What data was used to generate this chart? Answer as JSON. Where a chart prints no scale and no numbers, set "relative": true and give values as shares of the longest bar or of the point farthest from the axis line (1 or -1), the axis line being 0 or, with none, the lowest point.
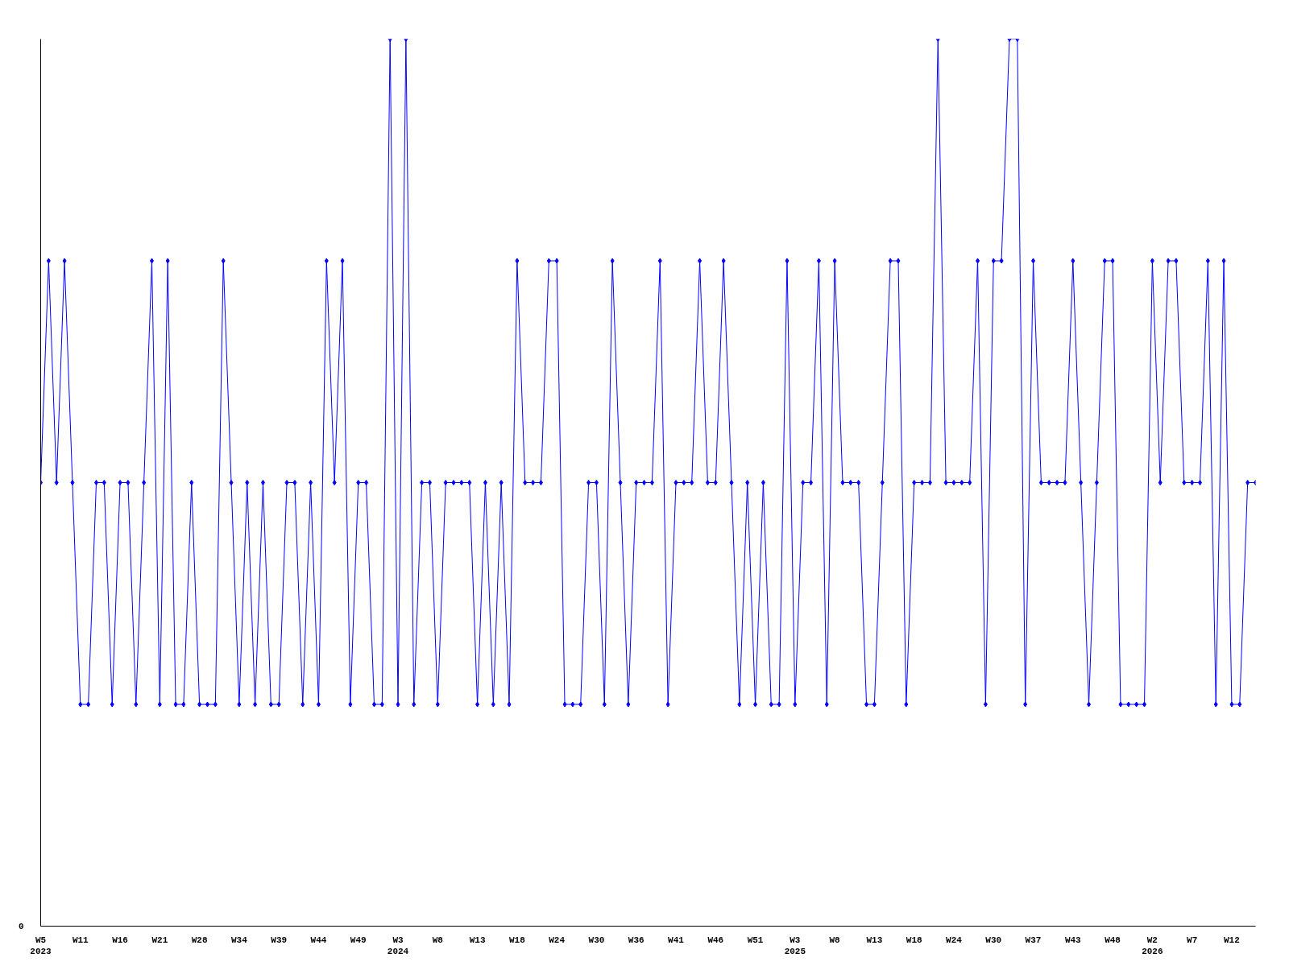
{
  "chart_data": {
    "type": "line",
    "relative": true,
    "color": "#0000ff",
    "marker": "diamond",
    "line_style": "solid",
    "grid": false,
    "annotations": [
      "0"
    ],
    "categories": [
      "W5\n2023",
      null,
      null,
      null,
      null,
      "W11",
      null,
      null,
      null,
      null,
      "W16",
      null,
      null,
      null,
      null,
      "W21",
      null,
      null,
      null,
      null,
      "W28",
      null,
      null,
      null,
      null,
      "W34",
      null,
      null,
      null,
      null,
      "W39",
      null,
      null,
      null,
      null,
      "W44",
      null,
      null,
      null,
      null,
      "W49",
      null,
      null,
      null,
      null,
      "W3\n2024",
      null,
      null,
      null,
      null,
      "W8",
      null,
      null,
      null,
      null,
      "W13",
      null,
      null,
      null,
      null,
      "W18",
      null,
      null,
      null,
      null,
      "W24",
      null,
      null,
      null,
      null,
      "W30",
      null,
      null,
      null,
      null,
      "W36",
      null,
      null,
      null,
      null,
      "W41",
      null,
      null,
      null,
      null,
      "W46",
      null,
      null,
      null,
      null,
      "W51",
      null,
      null,
      null,
      null,
      "W3\n2025",
      null,
      null,
      null,
      null,
      "W8",
      null,
      null,
      null,
      null,
      "W13",
      null,
      null,
      null,
      null,
      "W18",
      null,
      null,
      null,
      null,
      "W24",
      null,
      null,
      null,
      null,
      "W30",
      null,
      null,
      null,
      null,
      "W37",
      null,
      null,
      null,
      null,
      "W43",
      null,
      null,
      null,
      null,
      "W48",
      null,
      null,
      null,
      null,
      "W2\n2026",
      null,
      null,
      null,
      null,
      "W7",
      null,
      null,
      null,
      null,
      "W12",
      null,
      null,
      null
    ],
    "values": [
      0.5,
      0.75,
      0.5,
      0.75,
      0.5,
      0.25,
      0.25,
      0.5,
      0.5,
      0.25,
      0.5,
      0.5,
      0.25,
      0.5,
      0.75,
      0.25,
      0.75,
      0.25,
      0.25,
      0.5,
      0.25,
      0.25,
      0.25,
      0.75,
      0.5,
      0.25,
      0.5,
      0.25,
      0.5,
      0.25,
      0.25,
      0.5,
      0.5,
      0.25,
      0.5,
      0.25,
      0.75,
      0.5,
      0.75,
      0.25,
      0.5,
      0.5,
      0.25,
      0.25,
      1,
      0.25,
      1,
      0.25,
      0.5,
      0.5,
      0.25,
      0.5,
      0.5,
      0.5,
      0.5,
      0.25,
      0.5,
      0.25,
      0.5,
      0.25,
      0.75,
      0.5,
      0.5,
      0.5,
      0.75,
      0.75,
      0.25,
      0.25,
      0.25,
      0.5,
      0.5,
      0.25,
      0.75,
      0.5,
      0.25,
      0.5,
      0.5,
      0.5,
      0.75,
      0.25,
      0.5,
      0.5,
      0.5,
      0.75,
      0.5,
      0.5,
      0.75,
      0.5,
      0.25,
      0.5,
      0.25,
      0.5,
      0.25,
      0.25,
      0.75,
      0.25,
      0.5,
      0.5,
      0.75,
      0.25,
      0.75,
      0.5,
      0.5,
      0.5,
      0.25,
      0.25,
      0.5,
      0.75,
      0.75,
      0.25,
      0.5,
      0.5,
      0.5,
      1,
      0.5,
      0.5,
      0.5,
      0.5,
      0.75,
      0.25,
      0.75,
      0.75,
      1,
      1,
      0.25,
      0.75,
      0.5,
      0.5,
      0.5,
      0.5,
      0.75,
      0.5,
      0.25,
      0.5,
      0.75,
      0.75,
      0.25,
      0.25,
      0.25,
      0.25,
      0.75,
      0.5,
      0.75,
      0.75,
      0.5,
      0.5,
      0.5,
      0.75,
      0.25,
      0.75,
      0.25,
      0.25,
      0.5,
      0.5
    ]
  }
}
